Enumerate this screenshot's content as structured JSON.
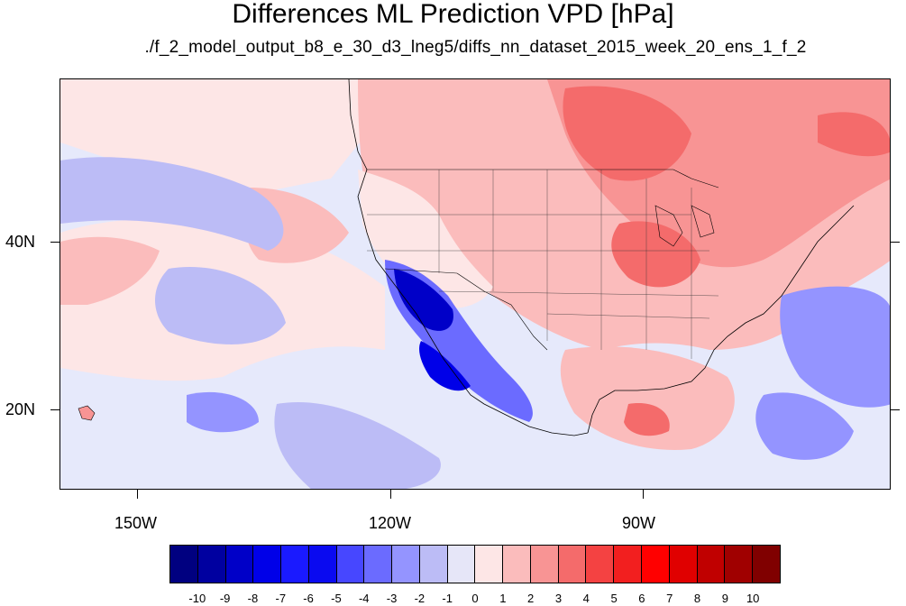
{
  "title": "Differences ML Prediction VPD [hPa]",
  "subtitle": "./f_2_model_output_b8_e_30_d3_lneg5/diffs_nn_dataset_2015_week_20_ens_1_f_2",
  "lon_labels": [
    "150W",
    "120W",
    "90W"
  ],
  "lat_labels": [
    "40N",
    "20N"
  ],
  "colorbar": {
    "labels": [
      "-10",
      "-9",
      "-8",
      "-7",
      "-6",
      "-5",
      "-4",
      "-3",
      "-2",
      "-1",
      "0",
      "1",
      "2",
      "3",
      "4",
      "5",
      "6",
      "7",
      "8",
      "9",
      "10"
    ],
    "colors": [
      "#000080",
      "#0000a0",
      "#0000c8",
      "#0000e8",
      "#1a1aff",
      "#0a0af0",
      "#4747ff",
      "#6b6bff",
      "#9494ff",
      "#bcbcf6",
      "#e6e6f8",
      "#fde6e6",
      "#fbbcbc",
      "#f89494",
      "#f46b6b",
      "#f44242",
      "#f21f1f",
      "#ff0000",
      "#e00000",
      "#c00000",
      "#a00000",
      "#800000"
    ]
  },
  "colors": {
    "blue_dark": "#0000c8",
    "blue_mid": "#6b6bff",
    "blue_light": "#bcbcf6",
    "neutral_blue": "#e6e9fb",
    "neutral_red": "#fde6e6",
    "red_light": "#fbbcbc",
    "red_mid": "#f46b6b",
    "red_strong": "#f21f1f"
  }
}
